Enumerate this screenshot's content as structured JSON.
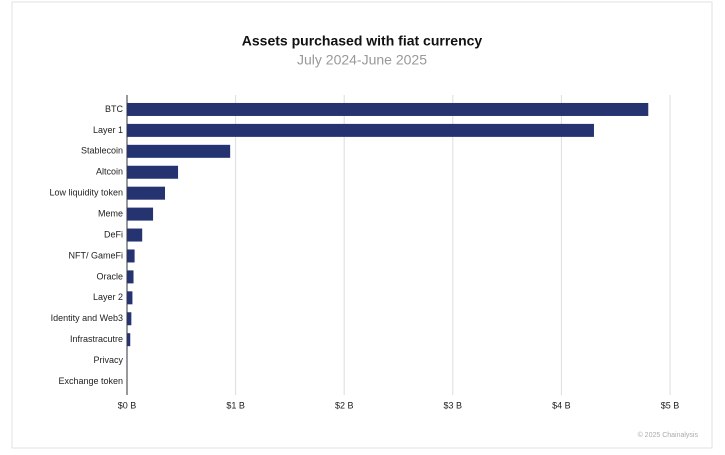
{
  "chart_data": {
    "type": "bar",
    "orientation": "horizontal",
    "title": "Assets purchased with fiat currency",
    "subtitle": "July 2024-June 2025",
    "categories": [
      "BTC",
      "Layer 1",
      "Stablecoin",
      "Altcoin",
      "Low liquidity token",
      "Meme",
      "DeFi",
      "NFT/ GameFi",
      "Oracle",
      "Layer 2",
      "Identity and Web3",
      "Infrastracutre",
      "Privacy",
      "Exchange token"
    ],
    "values": [
      4.8,
      4.3,
      0.95,
      0.47,
      0.35,
      0.24,
      0.14,
      0.07,
      0.06,
      0.05,
      0.04,
      0.03,
      0.002,
      0.001
    ],
    "color": "#253470",
    "xlim": [
      0,
      5
    ],
    "xticks": [
      {
        "value": 0,
        "label": "$0 B"
      },
      {
        "value": 1,
        "label": "$1 B"
      },
      {
        "value": 2,
        "label": "$2 B"
      },
      {
        "value": 3,
        "label": "$3 B"
      },
      {
        "value": 4,
        "label": "$4 B"
      },
      {
        "value": 5,
        "label": "$5 B"
      }
    ],
    "grid": true,
    "source": "© 2025 Chainalysis"
  }
}
